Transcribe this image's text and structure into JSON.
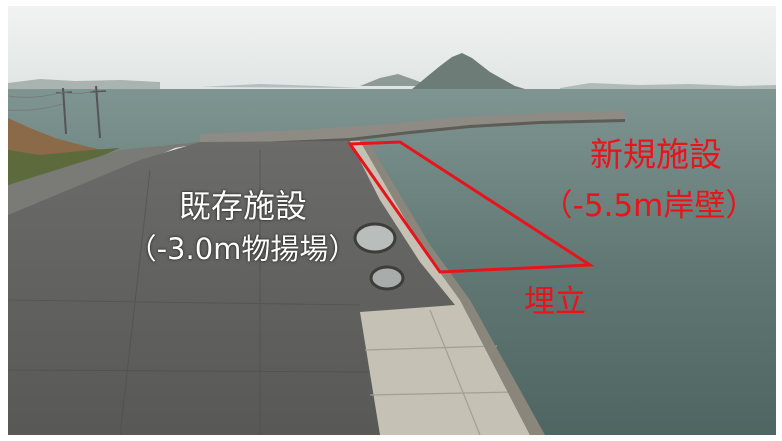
{
  "labels": {
    "existing_facility": {
      "name": "既存施設",
      "detail": "（-3.0m物揚場）"
    },
    "new_facility": {
      "name": "新規施設",
      "detail": "（-5.5m岸壁）"
    },
    "reclamation": "埋立"
  },
  "colors": {
    "annotation_red": "#e8141b",
    "annotation_white": "#ffffff",
    "sea": "#5d7470",
    "sky": "#e7ebea",
    "pavement": "#5f5f5f",
    "quay_edge": "#c9c4b8"
  }
}
